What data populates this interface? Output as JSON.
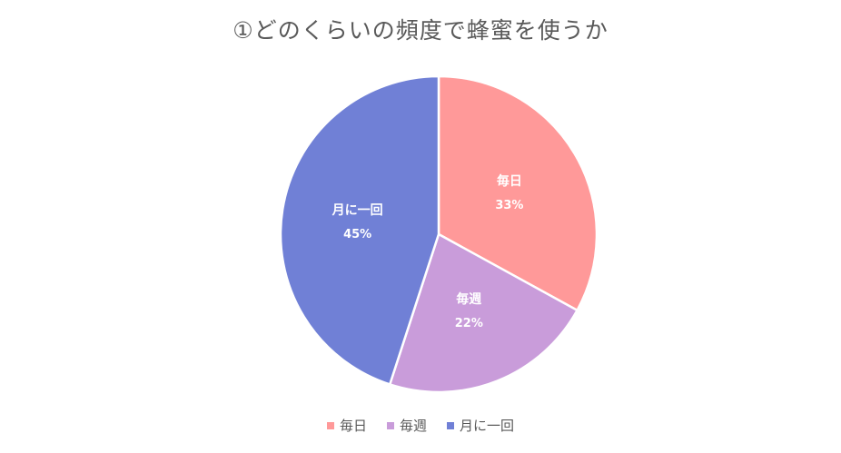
{
  "chart_data": {
    "type": "pie",
    "title": "①どのくらいの頻度で蜂蜜を使うか",
    "categories": [
      "毎日",
      "毎週",
      "月に一回"
    ],
    "values": [
      33,
      22,
      45
    ],
    "percent_labels": [
      "33%",
      "22%",
      "45%"
    ],
    "colors": [
      "#FF9999",
      "#C99CDA",
      "#7080D6"
    ],
    "legend_position": "bottom",
    "start_angle": "top, clockwise"
  }
}
